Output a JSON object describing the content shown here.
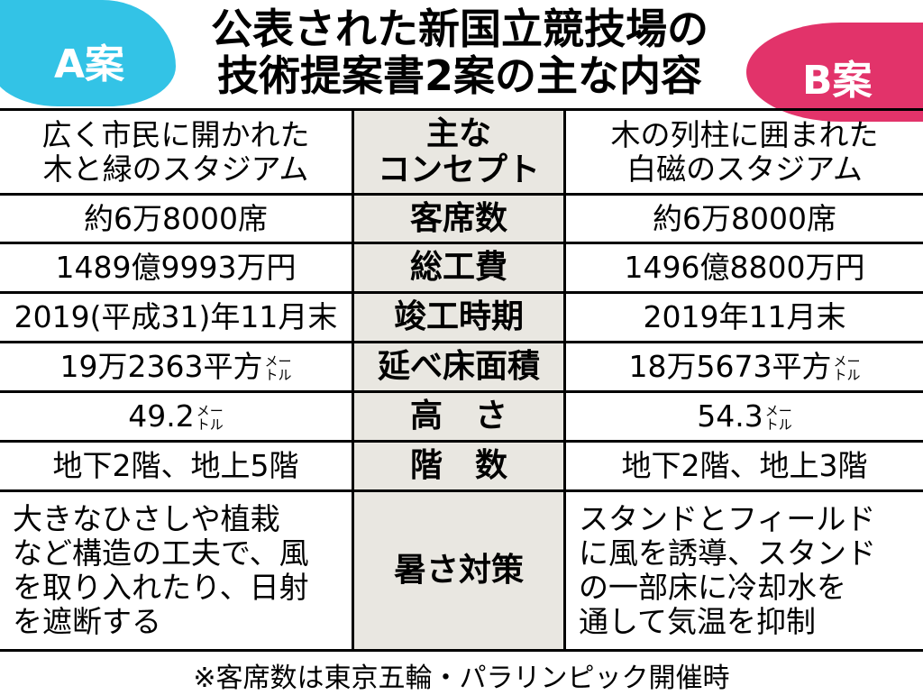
{
  "header": {
    "title_lines": [
      "公表された新国立競技場の",
      "技術提案書2案の主な内容"
    ],
    "a_label": "A案",
    "b_label": "B案"
  },
  "table": {
    "rows": [
      {
        "a": {
          "lines": [
            "広く市民に開かれた",
            "木と緑のスタジアム"
          ]
        },
        "label": [
          "主な",
          "コンセプト"
        ],
        "b": {
          "lines": [
            "木の列柱に囲まれた",
            "白磁のスタジアム"
          ]
        }
      },
      {
        "a": {
          "lines": [
            "約6万8000席"
          ]
        },
        "label": [
          "客席数"
        ],
        "b": {
          "lines": [
            "約6万8000席"
          ]
        }
      },
      {
        "a": {
          "lines": [
            "1489億9993万円"
          ]
        },
        "label": [
          "総工費"
        ],
        "b": {
          "lines": [
            "1496億8800万円"
          ]
        }
      },
      {
        "a": {
          "lines": [
            "2019(平成31)年11月末"
          ]
        },
        "label": [
          "竣工時期"
        ],
        "b": {
          "lines": [
            "2019年11月末"
          ]
        }
      },
      {
        "a": {
          "lines": [
            "19万2363平方"
          ],
          "unit": [
            "メー",
            "トル"
          ]
        },
        "label": [
          "延べ床面積"
        ],
        "b": {
          "lines": [
            "18万5673平方"
          ],
          "unit": [
            "メー",
            "トル"
          ]
        }
      },
      {
        "a": {
          "lines": [
            "49.2"
          ],
          "unit": [
            "メー",
            "トル"
          ]
        },
        "label": [
          "高　さ"
        ],
        "b": {
          "lines": [
            "54.3"
          ],
          "unit": [
            "メー",
            "トル"
          ]
        }
      },
      {
        "a": {
          "lines": [
            "地下2階、地上5階"
          ]
        },
        "label": [
          "階　数"
        ],
        "b": {
          "lines": [
            "地下2階、地上3階"
          ]
        }
      },
      {
        "a": {
          "lines": [
            "大きなひさしや植栽",
            "など構造の工夫で、風",
            "を取り入れたり、日射",
            "を遮断する"
          ],
          "left": true
        },
        "label": [
          "暑さ対策"
        ],
        "b": {
          "lines": [
            "スタンドとフィールド",
            "に風を誘導、スタンド",
            "の一部床に冷却水を",
            "通して気温を抑制"
          ],
          "left": true
        }
      }
    ]
  },
  "footnote": "※客席数は東京五輪・パラリンピック開催時"
}
